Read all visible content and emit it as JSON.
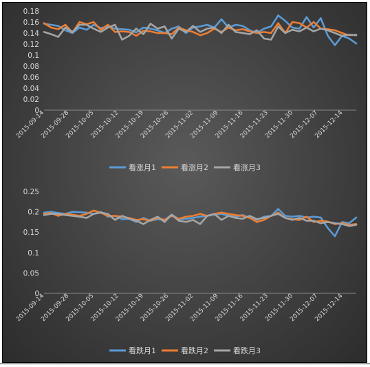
{
  "chart_data": [
    {
      "type": "line",
      "title": "",
      "xlabel": "",
      "ylabel": "",
      "ylim": [
        0,
        0.18
      ],
      "yticks": [
        "0",
        "0.02",
        "0.04",
        "0.06",
        "0.08",
        "0.1",
        "0.12",
        "0.14",
        "0.16",
        "0.18"
      ],
      "x_ticks": [
        "2015-09-14",
        "2015-09-28",
        "2015-10-05",
        "2015-10-12",
        "2015-10-19",
        "2015-10-26",
        "2015-11-02",
        "2015-11-09",
        "2015-11-16",
        "2015-11-23",
        "2015-11-30",
        "2015-12-07",
        "2015-12-14"
      ],
      "grid": false,
      "legend_position": "bottom",
      "series": [
        {
          "name": "看涨月1",
          "color": "#5b9bd5",
          "values": [
            0.157,
            0.155,
            0.153,
            0.145,
            0.14,
            0.15,
            0.146,
            0.155,
            0.149,
            0.152,
            0.148,
            0.147,
            0.146,
            0.141,
            0.15,
            0.148,
            0.145,
            0.14,
            0.148,
            0.152,
            0.14,
            0.15,
            0.152,
            0.155,
            0.15,
            0.165,
            0.15,
            0.155,
            0.153,
            0.145,
            0.14,
            0.148,
            0.152,
            0.172,
            0.162,
            0.15,
            0.148,
            0.169,
            0.15,
            0.167,
            0.135,
            0.118,
            0.135,
            0.13,
            0.121
          ]
        },
        {
          "name": "看涨月2",
          "color": "#ed7d31",
          "values": [
            0.158,
            0.15,
            0.147,
            0.155,
            0.141,
            0.16,
            0.156,
            0.16,
            0.146,
            0.155,
            0.142,
            0.143,
            0.142,
            0.135,
            0.144,
            0.143,
            0.14,
            0.14,
            0.138,
            0.15,
            0.145,
            0.142,
            0.136,
            0.14,
            0.148,
            0.142,
            0.15,
            0.145,
            0.147,
            0.143,
            0.14,
            0.142,
            0.14,
            0.158,
            0.14,
            0.16,
            0.158,
            0.15,
            0.16,
            0.148,
            0.147,
            0.145,
            0.14,
            0.136,
            0.137
          ]
        },
        {
          "name": "看涨月3",
          "color": "#a5a5a5",
          "values": [
            0.142,
            0.138,
            0.133,
            0.15,
            0.142,
            0.155,
            0.155,
            0.148,
            0.142,
            0.15,
            0.155,
            0.128,
            0.135,
            0.148,
            0.138,
            0.157,
            0.148,
            0.152,
            0.13,
            0.148,
            0.142,
            0.153,
            0.142,
            0.148,
            0.15,
            0.14,
            0.155,
            0.142,
            0.14,
            0.138,
            0.145,
            0.13,
            0.128,
            0.152,
            0.14,
            0.146,
            0.143,
            0.15,
            0.143,
            0.148,
            0.145,
            0.14,
            0.135,
            0.137,
            0.136
          ]
        }
      ]
    },
    {
      "type": "line",
      "title": "",
      "xlabel": "",
      "ylabel": "",
      "ylim": [
        0,
        0.25
      ],
      "yticks": [
        "0",
        "0.05",
        "0.1",
        "0.15",
        "0.2",
        "0.25"
      ],
      "x_ticks": [
        "2015-09-14",
        "2015-09-28",
        "2015-10-05",
        "2015-10-12",
        "2015-10-19",
        "2015-10-26",
        "2015-11-02",
        "2015-11-09",
        "2015-11-16",
        "2015-11-23",
        "2015-11-30",
        "2015-12-07",
        "2015-12-14"
      ],
      "grid": false,
      "legend_position": "bottom",
      "series": [
        {
          "name": "看跌月1",
          "color": "#5b9bd5",
          "values": [
            0.198,
            0.2,
            0.197,
            0.195,
            0.2,
            0.199,
            0.198,
            0.195,
            0.2,
            0.188,
            0.19,
            0.182,
            0.183,
            0.175,
            0.185,
            0.178,
            0.182,
            0.18,
            0.193,
            0.182,
            0.183,
            0.185,
            0.188,
            0.19,
            0.193,
            0.195,
            0.19,
            0.188,
            0.192,
            0.185,
            0.18,
            0.188,
            0.19,
            0.207,
            0.19,
            0.188,
            0.19,
            0.186,
            0.188,
            0.186,
            0.16,
            0.14,
            0.175,
            0.172,
            0.186
          ]
        },
        {
          "name": "看跌月2",
          "color": "#ed7d31",
          "values": [
            0.195,
            0.197,
            0.19,
            0.195,
            0.193,
            0.19,
            0.195,
            0.203,
            0.198,
            0.19,
            0.19,
            0.188,
            0.185,
            0.18,
            0.182,
            0.178,
            0.185,
            0.18,
            0.19,
            0.183,
            0.188,
            0.19,
            0.195,
            0.19,
            0.195,
            0.198,
            0.195,
            0.192,
            0.19,
            0.185,
            0.175,
            0.18,
            0.19,
            0.198,
            0.185,
            0.182,
            0.18,
            0.188,
            0.175,
            0.178,
            0.176,
            0.17,
            0.172,
            0.168,
            0.17
          ]
        },
        {
          "name": "看跌月3",
          "color": "#a5a5a5",
          "values": [
            0.192,
            0.195,
            0.195,
            0.192,
            0.19,
            0.188,
            0.185,
            0.195,
            0.198,
            0.195,
            0.18,
            0.19,
            0.183,
            0.178,
            0.17,
            0.18,
            0.188,
            0.175,
            0.193,
            0.178,
            0.175,
            0.18,
            0.17,
            0.19,
            0.195,
            0.18,
            0.19,
            0.185,
            0.183,
            0.19,
            0.182,
            0.185,
            0.19,
            0.195,
            0.185,
            0.18,
            0.185,
            0.178,
            0.178,
            0.172,
            0.175,
            0.172,
            0.17,
            0.165,
            0.168
          ]
        }
      ]
    }
  ]
}
